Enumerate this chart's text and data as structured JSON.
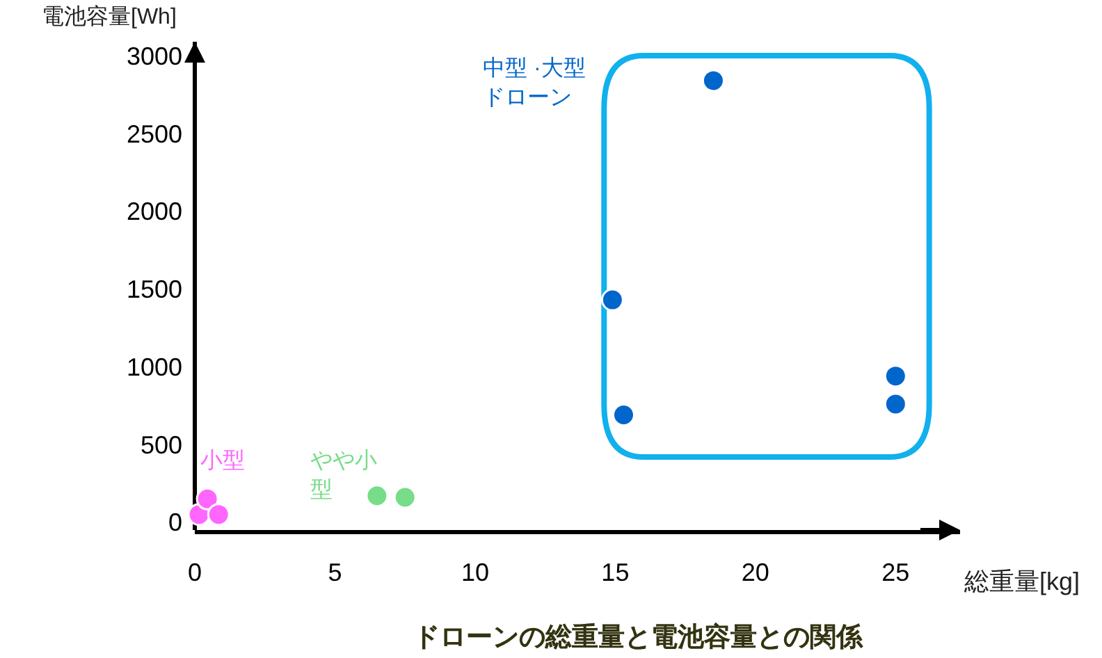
{
  "chart_data": {
    "type": "scatter",
    "title": "ドローンの総重量と電池容量との関係",
    "xlabel": "総重量[kg]",
    "ylabel": "電池容量[Wh]",
    "xlim": [
      0,
      27.3
    ],
    "ylim": [
      -50,
      3090
    ],
    "xticks": [
      0,
      5,
      10,
      15,
      20,
      25
    ],
    "yticks": [
      0,
      500,
      1000,
      1500,
      2000,
      2500,
      3000
    ],
    "grid": false,
    "legend": false,
    "marker": "circle",
    "series": [
      {
        "name": "小型",
        "color": "#ff66ff",
        "x": [
          0.15,
          0.45,
          0.85
        ],
        "values": [
          50,
          150,
          50
        ]
      },
      {
        "name": "やや小型",
        "color": "#77dd88",
        "x": [
          6.5,
          7.5
        ],
        "values": [
          170,
          160
        ]
      },
      {
        "name": "中型 ·大型ドローン",
        "color": "#0066cc",
        "x": [
          18.5,
          14.9,
          15.3,
          25,
          25
        ],
        "values": [
          2840,
          1430,
          690,
          940,
          760
        ]
      }
    ]
  }
}
